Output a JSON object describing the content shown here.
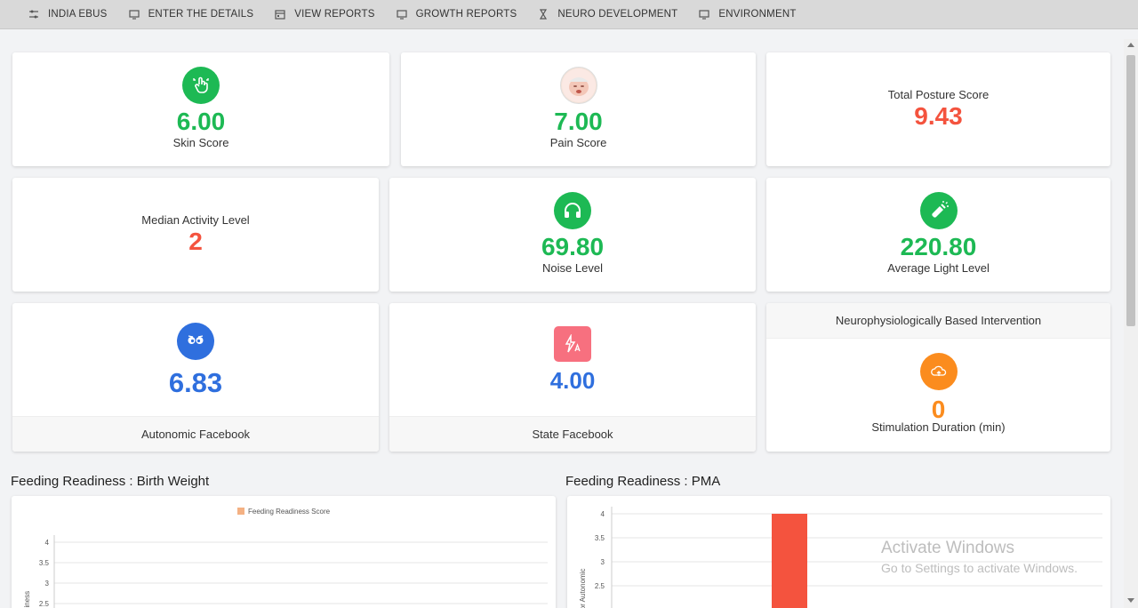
{
  "nav": {
    "items": [
      {
        "label": "INDIA EBUS",
        "icon": "sliders-icon"
      },
      {
        "label": "ENTER THE DETAILS",
        "icon": "monitor-icon"
      },
      {
        "label": "VIEW REPORTS",
        "icon": "calendar-icon"
      },
      {
        "label": "GROWTH REPORTS",
        "icon": "monitor-icon"
      },
      {
        "label": "NEURO DEVELOPMENT",
        "icon": "hourglass-icon"
      },
      {
        "label": "ENVIRONMENT",
        "icon": "monitor-icon"
      }
    ]
  },
  "cards": {
    "skin": {
      "value": "6.00",
      "label": "Skin Score",
      "icon": "touch-hand-icon"
    },
    "pain": {
      "value": "7.00",
      "label": "Pain Score",
      "icon": "baby-face-icon"
    },
    "posture": {
      "value": "9.43",
      "label": "Total Posture Score"
    },
    "activity": {
      "value": "2",
      "label": "Median Activity Level"
    },
    "noise": {
      "value": "69.80",
      "label": "Noise Level",
      "icon": "headphones-icon"
    },
    "light": {
      "value": "220.80",
      "label": "Average Light Level",
      "icon": "flashlight-icon"
    },
    "autonomic": {
      "value": "6.83",
      "label": "Autonomic Facebook",
      "icon": "face-icon"
    },
    "state": {
      "value": "4.00",
      "label": "State Facebook",
      "icon": "flash-auto-icon"
    },
    "intervention": {
      "header": "Neurophysiologically Based Intervention",
      "value": "0",
      "label": "Stimulation Duration (min)",
      "icon": "cloud-upload-icon"
    }
  },
  "colors": {
    "green": "#1db954",
    "red": "#f4533e",
    "blue": "#2f6fde",
    "orange": "#fb8c1e",
    "pink": "#f7707f"
  },
  "sections": {
    "birth_weight_title": "Feeding Readiness : Birth Weight",
    "pma_title": "Feeding Readiness : PMA"
  },
  "chart_data": [
    {
      "type": "bar",
      "title": "",
      "legend": [
        "Feeding Readiness Score"
      ],
      "yticks": [
        "4",
        "3.5",
        "3",
        "2.5"
      ],
      "ylabel": "diness",
      "series": [
        {
          "name": "Feeding Readiness Score",
          "values": []
        }
      ]
    },
    {
      "type": "bar",
      "title": "",
      "yticks": [
        "4",
        "3.5",
        "3",
        "2.5"
      ],
      "ylabel": "ior Autonomic",
      "series": [
        {
          "values": [
            4
          ]
        }
      ]
    }
  ],
  "watermark": {
    "line1": "Activate Windows",
    "line2": "Go to Settings to activate Windows."
  }
}
